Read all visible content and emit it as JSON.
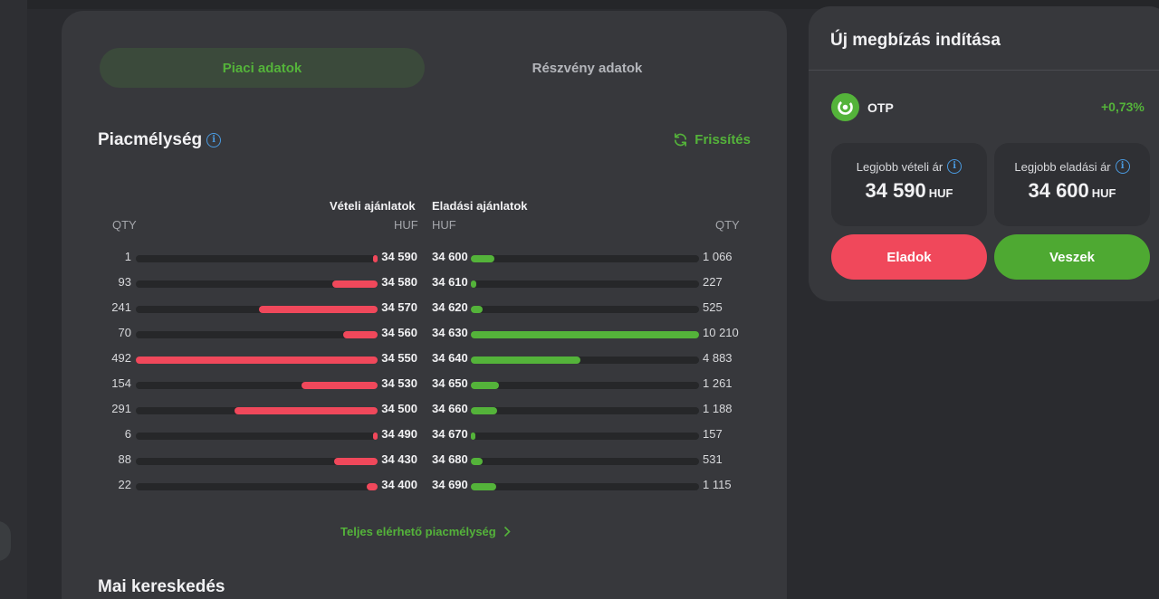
{
  "tabs": [
    "Piaci adatok",
    "Részvény adatok"
  ],
  "depth": {
    "title": "Piacmélység",
    "refresh_label": "Frissítés",
    "bid_header": "Vételi ajánlatok",
    "ask_header": "Eladási ajánlatok",
    "bid_qty_label": "QTY",
    "bid_cur_label": "HUF",
    "ask_cur_label": "HUF",
    "ask_qty_label": "QTY",
    "max_bid_qty": 492,
    "max_ask_qty": 10210,
    "rows": [
      {
        "bid_qty": "1",
        "bid_price": "34 590",
        "ask_price": "34 600",
        "ask_qty": "1 066",
        "bid_n": 1,
        "ask_n": 1066
      },
      {
        "bid_qty": "93",
        "bid_price": "34 580",
        "ask_price": "34 610",
        "ask_qty": "227",
        "bid_n": 93,
        "ask_n": 227
      },
      {
        "bid_qty": "241",
        "bid_price": "34 570",
        "ask_price": "34 620",
        "ask_qty": "525",
        "bid_n": 241,
        "ask_n": 525
      },
      {
        "bid_qty": "70",
        "bid_price": "34 560",
        "ask_price": "34 630",
        "ask_qty": "10 210",
        "bid_n": 70,
        "ask_n": 10210
      },
      {
        "bid_qty": "492",
        "bid_price": "34 550",
        "ask_price": "34 640",
        "ask_qty": "4 883",
        "bid_n": 492,
        "ask_n": 4883
      },
      {
        "bid_qty": "154",
        "bid_price": "34 530",
        "ask_price": "34 650",
        "ask_qty": "1 261",
        "bid_n": 154,
        "ask_n": 1261
      },
      {
        "bid_qty": "291",
        "bid_price": "34 500",
        "ask_price": "34 660",
        "ask_qty": "1 188",
        "bid_n": 291,
        "ask_n": 1188
      },
      {
        "bid_qty": "6",
        "bid_price": "34 490",
        "ask_price": "34 670",
        "ask_qty": "157",
        "bid_n": 6,
        "ask_n": 157
      },
      {
        "bid_qty": "88",
        "bid_price": "34 430",
        "ask_price": "34 680",
        "ask_qty": "531",
        "bid_n": 88,
        "ask_n": 531
      },
      {
        "bid_qty": "22",
        "bid_price": "34 400",
        "ask_price": "34 690",
        "ask_qty": "1 115",
        "bid_n": 22,
        "ask_n": 1115
      }
    ],
    "full_depth_link": "Teljes elérhető piacmélység"
  },
  "today": {
    "title": "Mai kereskedés"
  },
  "order": {
    "title": "Új megbízás indítása",
    "ticker": "OTP",
    "change": "+0,73%",
    "best_bid_label": "Legjobb vételi ár",
    "best_bid": "34 590",
    "best_ask_label": "Legjobb eladási ár",
    "best_ask": "34 600",
    "currency": "HUF",
    "sell_label": "Eladok",
    "buy_label": "Veszek"
  },
  "colors": {
    "green": "#54b33a",
    "red": "#f0485b",
    "info": "#4a9ae0"
  }
}
